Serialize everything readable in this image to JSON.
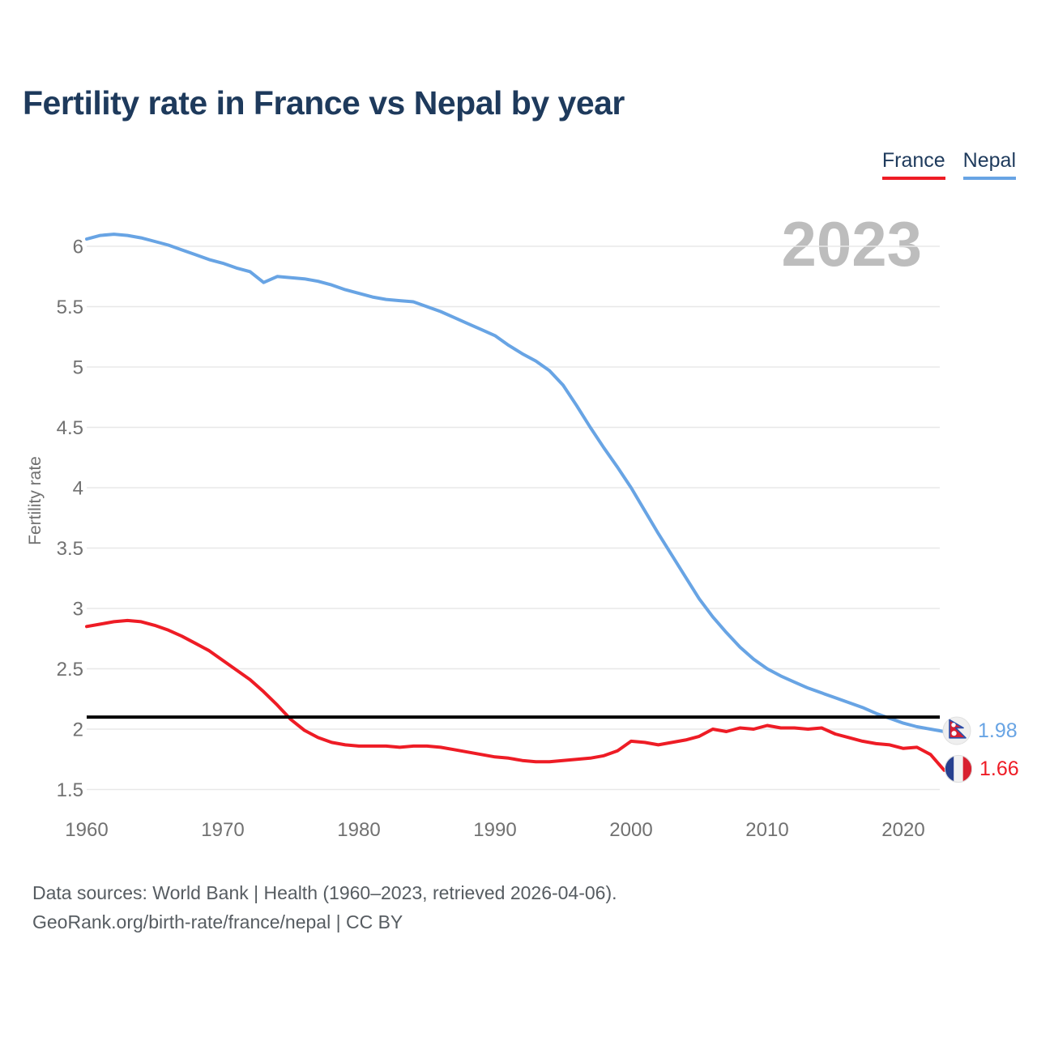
{
  "chart_data": {
    "type": "line",
    "title": "Fertility rate in France vs Nepal by year",
    "ylabel": "Fertility rate",
    "watermark": "2023",
    "grid": "horizontal-only",
    "legend_position": "top-right",
    "xlim": [
      1960,
      2023
    ],
    "ylim": [
      1.5,
      6.15
    ],
    "xticks": [
      1960,
      1970,
      1980,
      1990,
      2000,
      2010,
      2020
    ],
    "yticks": [
      1.5,
      2,
      2.5,
      3,
      3.5,
      4,
      4.5,
      5,
      5.5,
      6
    ],
    "reference_line": {
      "value": 2.1,
      "color": "#000000"
    },
    "x": [
      1960,
      1961,
      1962,
      1963,
      1964,
      1965,
      1966,
      1967,
      1968,
      1969,
      1970,
      1971,
      1972,
      1973,
      1974,
      1975,
      1976,
      1977,
      1978,
      1979,
      1980,
      1981,
      1982,
      1983,
      1984,
      1985,
      1986,
      1987,
      1988,
      1989,
      1990,
      1991,
      1992,
      1993,
      1994,
      1995,
      1996,
      1997,
      1998,
      1999,
      2000,
      2001,
      2002,
      2003,
      2004,
      2005,
      2006,
      2007,
      2008,
      2009,
      2010,
      2011,
      2012,
      2013,
      2014,
      2015,
      2016,
      2017,
      2018,
      2019,
      2020,
      2021,
      2022,
      2023
    ],
    "series": [
      {
        "name": "Nepal",
        "color": "#68a4e4",
        "end_label": "1.98",
        "values": [
          6.06,
          6.09,
          6.1,
          6.09,
          6.07,
          6.04,
          6.01,
          5.97,
          5.93,
          5.89,
          5.86,
          5.82,
          5.79,
          5.7,
          5.75,
          5.74,
          5.73,
          5.71,
          5.68,
          5.64,
          5.61,
          5.58,
          5.56,
          5.55,
          5.54,
          5.5,
          5.46,
          5.41,
          5.36,
          5.31,
          5.26,
          5.18,
          5.11,
          5.05,
          4.97,
          4.85,
          4.68,
          4.5,
          4.33,
          4.17,
          4.0,
          3.81,
          3.62,
          3.44,
          3.26,
          3.08,
          2.93,
          2.8,
          2.68,
          2.58,
          2.5,
          2.44,
          2.39,
          2.34,
          2.3,
          2.26,
          2.22,
          2.18,
          2.13,
          2.09,
          2.05,
          2.02,
          2.0,
          1.98
        ]
      },
      {
        "name": "France",
        "color": "#ee1c25",
        "end_label": "1.66",
        "values": [
          2.85,
          2.87,
          2.89,
          2.9,
          2.89,
          2.86,
          2.82,
          2.77,
          2.71,
          2.65,
          2.57,
          2.49,
          2.41,
          2.31,
          2.2,
          2.08,
          1.99,
          1.93,
          1.89,
          1.87,
          1.86,
          1.86,
          1.86,
          1.85,
          1.86,
          1.86,
          1.85,
          1.83,
          1.81,
          1.79,
          1.77,
          1.76,
          1.74,
          1.73,
          1.73,
          1.74,
          1.75,
          1.76,
          1.78,
          1.82,
          1.9,
          1.89,
          1.87,
          1.89,
          1.91,
          1.94,
          2.0,
          1.98,
          2.01,
          2.0,
          2.03,
          2.01,
          2.01,
          2.0,
          2.01,
          1.96,
          1.93,
          1.9,
          1.88,
          1.87,
          1.84,
          1.85,
          1.79,
          1.66
        ]
      }
    ]
  },
  "legend": {
    "items": [
      {
        "label": "France",
        "color": "#ee1c25"
      },
      {
        "label": "Nepal",
        "color": "#68a4e4"
      }
    ]
  },
  "footer": {
    "line1": "Data sources: World Bank | Health (1960–2023, retrieved 2026-04-06).",
    "line2": "GeoRank.org/birth-rate/france/nepal | CC BY"
  }
}
